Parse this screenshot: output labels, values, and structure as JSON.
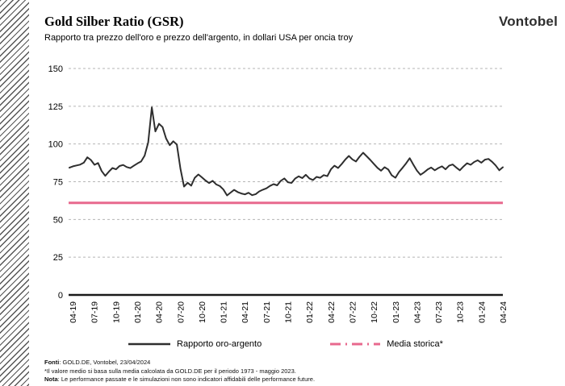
{
  "header": {
    "title": "Gold Silber Ratio (GSR)",
    "subtitle": "Rapporto tra prezzo dell'oro e prezzo dell'argento, in dollari USA per oncia troy",
    "brand": "Vontobel"
  },
  "chart_data": {
    "type": "line",
    "title": "Gold Silber Ratio (GSR)",
    "xlabel": "",
    "ylabel": "",
    "ylim": [
      0,
      150
    ],
    "y_ticks": [
      0,
      25,
      50,
      75,
      100,
      125,
      150
    ],
    "grid": "horizontal dashed gridlines, solid baseline at 0",
    "legend_position": "bottom",
    "x_labels": [
      "04-19",
      "07-19",
      "10-19",
      "01-20",
      "04-20",
      "07-20",
      "10-20",
      "01-21",
      "04-21",
      "07-21",
      "10-21",
      "01-22",
      "04-22",
      "07-22",
      "10-22",
      "01-23",
      "04-23",
      "07-23",
      "10-23",
      "01-24",
      "04-24"
    ],
    "series": [
      {
        "name": "Rapporto oro-argento",
        "type": "line",
        "color": "#2e2e2e",
        "sampling": "two points per month, Apr 2019 - Apr 2024",
        "values": [
          84.3,
          85.2,
          85.8,
          86.3,
          87.6,
          91.2,
          89.4,
          86.2,
          87.4,
          82.1,
          78.9,
          81.6,
          84.1,
          83.2,
          85.4,
          86.1,
          84.7,
          84.0,
          85.6,
          87.1,
          88.4,
          92.3,
          101.0,
          124.2,
          108.3,
          113.4,
          111.2,
          103.6,
          99.2,
          101.8,
          99.6,
          83.5,
          71.8,
          74.3,
          72.4,
          77.6,
          79.8,
          77.9,
          75.8,
          74.1,
          75.6,
          73.2,
          72.1,
          69.8,
          65.9,
          67.8,
          69.6,
          68.1,
          67.2,
          66.6,
          67.7,
          66.1,
          66.8,
          68.6,
          69.7,
          70.6,
          72.2,
          73.4,
          72.6,
          75.6,
          77.2,
          74.6,
          74.2,
          77.1,
          78.6,
          77.4,
          79.6,
          77.2,
          76.1,
          78.2,
          77.6,
          79.4,
          78.7,
          83.2,
          85.6,
          84.1,
          86.7,
          89.6,
          92.1,
          89.8,
          88.4,
          91.6,
          94.2,
          91.8,
          89.4,
          86.8,
          84.2,
          82.3,
          84.6,
          83.1,
          79.2,
          77.6,
          81.4,
          84.2,
          87.2,
          90.6,
          86.4,
          82.4,
          79.6,
          81.2,
          83.1,
          84.4,
          82.6,
          84.1,
          85.2,
          83.2,
          85.6,
          86.4,
          84.4,
          82.6,
          85.1,
          87.2,
          86.2,
          88.1,
          89.2,
          87.6,
          89.6,
          90.1,
          88.2,
          85.8,
          82.6,
          84.6
        ]
      },
      {
        "name": "Media storica*",
        "type": "hline",
        "color": "#e8698e",
        "value": 61
      }
    ]
  },
  "legend": {
    "items": [
      {
        "label": "Rapporto oro-argento",
        "swatch": "solid-line",
        "color": "#2e2e2e"
      },
      {
        "label": "Media storica*",
        "swatch": "dash-dot-line",
        "color": "#e8698e"
      }
    ]
  },
  "footer": {
    "line1_label": "Fonti",
    "line1_text": ": GOLD.DE, Vontobel, 23/04/2024",
    "line2": "*Il valore medio si basa sulla media calcolata da GOLD.DE per il periodo 1973 - maggio 2023.",
    "line3_label": "Nota",
    "line3_text": ": Le performance passate e le simulazioni non sono indicatori affidabili delle performance future."
  },
  "style": {
    "gridline_color": "#b5b5b5",
    "baseline_color": "#1a1a1a",
    "tick_label_color": "#000000"
  }
}
